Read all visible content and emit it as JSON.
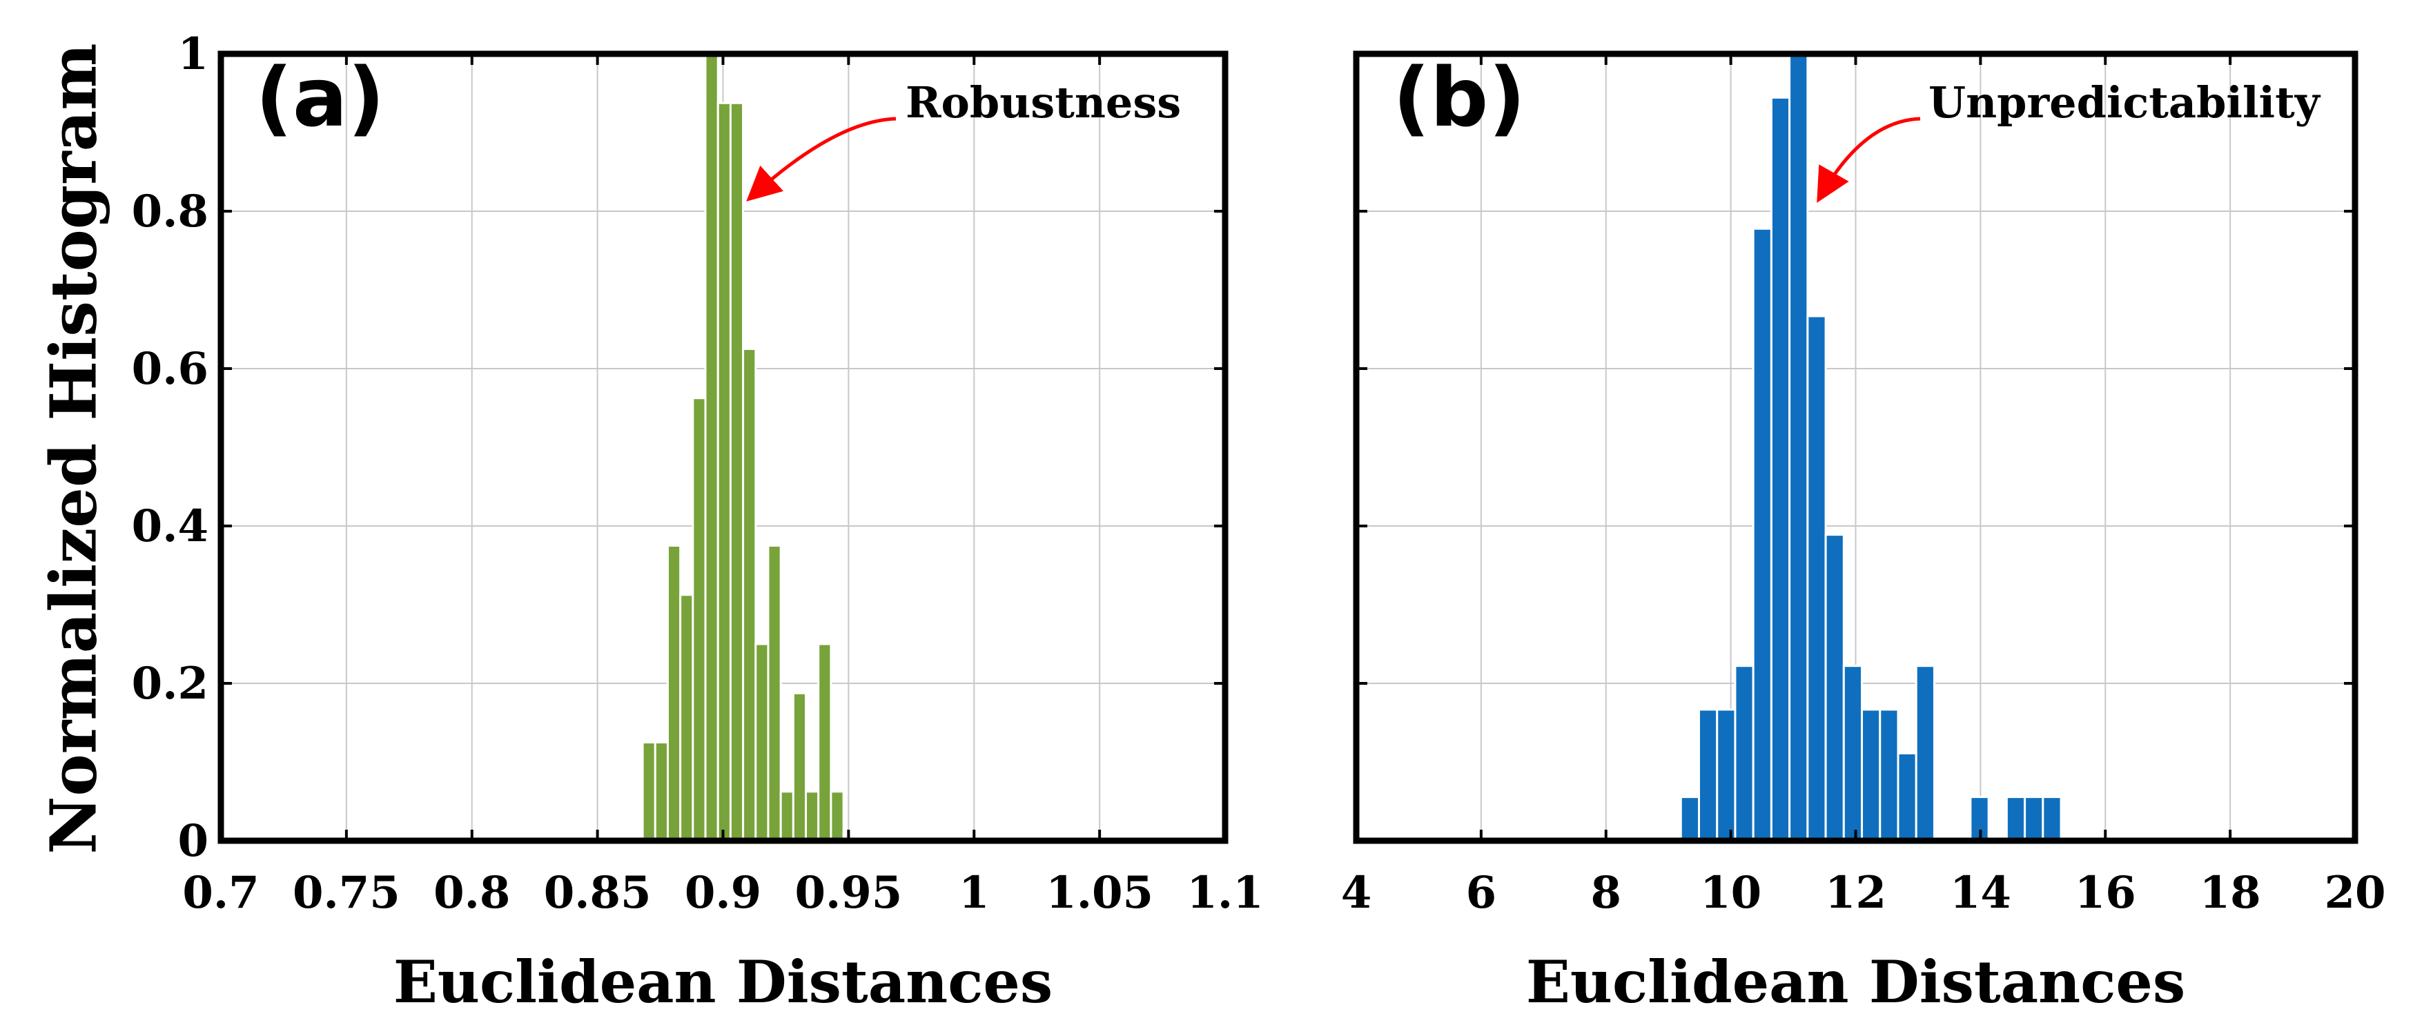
{
  "colors": {
    "panel_a_bars": "#77a33a",
    "panel_b_bars": "#0f6fbe",
    "annotation_arrow": "#ff0000",
    "grid": "#c8c8c8",
    "frame": "#000000"
  },
  "figure": {
    "ylabel": "Normalized Histogram"
  },
  "chart_data": [
    {
      "type": "bar",
      "panel_label": "(a)",
      "title": "",
      "xlabel": "Euclidean Distances",
      "ylabel": "Normalized Histogram",
      "xlim": [
        0.7,
        1.1
      ],
      "ylim": [
        0,
        1
      ],
      "xticks": [
        "0.7",
        "0.75",
        "0.8",
        "0.85",
        "0.9",
        "0.95",
        "1",
        "1.05",
        "1.1"
      ],
      "yticks": [
        "0",
        "0.2",
        "0.4",
        "0.6",
        "0.8",
        "1"
      ],
      "grid": true,
      "bin_width": 0.005,
      "bin_starts": [
        0.868,
        0.873,
        0.878,
        0.883,
        0.888,
        0.893,
        0.898,
        0.903,
        0.908,
        0.913,
        0.918,
        0.923,
        0.928,
        0.933,
        0.938,
        0.943
      ],
      "values": [
        0.125,
        0.125,
        0.375,
        0.3125,
        0.5625,
        1.0,
        0.9375,
        0.9375,
        0.625,
        0.25,
        0.375,
        0.0625,
        0.1875,
        0.0625,
        0.25,
        0.0625
      ],
      "annotation": {
        "text": "Robustness",
        "x_data": 0.908,
        "y_data": 0.82
      }
    },
    {
      "type": "bar",
      "panel_label": "(b)",
      "title": "",
      "xlabel": "Euclidean Distances",
      "ylabel": "",
      "xlim": [
        4,
        20
      ],
      "ylim": [
        0,
        1
      ],
      "xticks": [
        "4",
        "6",
        "8",
        "10",
        "12",
        "14",
        "16",
        "18",
        "20"
      ],
      "yticks": [
        "0",
        "0.2",
        "0.4",
        "0.6",
        "0.8",
        "1"
      ],
      "grid": true,
      "bin_width": 0.29,
      "bin_starts": [
        9.2,
        9.49,
        9.78,
        10.07,
        10.36,
        10.65,
        10.94,
        11.23,
        11.52,
        11.81,
        12.1,
        12.39,
        12.68,
        12.97,
        13.26,
        13.55,
        13.84,
        14.13,
        14.42,
        14.71,
        15.0
      ],
      "values": [
        0.0556,
        0.1667,
        0.1667,
        0.2222,
        0.7778,
        0.9444,
        1.0,
        0.6667,
        0.3889,
        0.2222,
        0.1667,
        0.1667,
        0.1111,
        0.2222,
        0.0,
        0.0,
        0.0556,
        0.0,
        0.0556,
        0.0556,
        0.0556
      ],
      "annotation": {
        "text": "Unpredictability",
        "x_data": 11.3,
        "y_data": 0.82
      }
    }
  ]
}
